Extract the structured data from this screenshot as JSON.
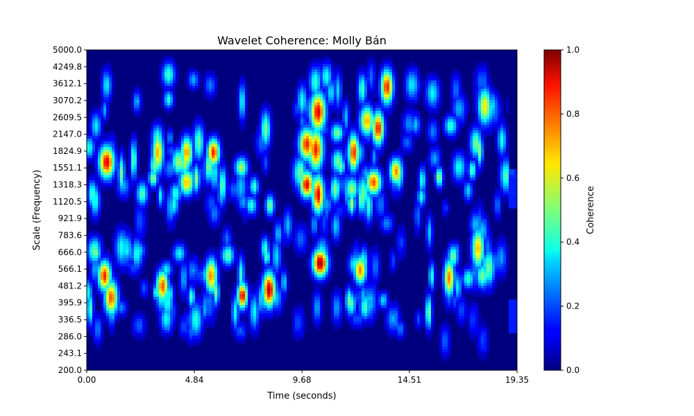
{
  "chart_data": {
    "type": "heatmap",
    "title": "Wavelet Coherence: Molly Bán",
    "xlabel": "Time (seconds)",
    "ylabel": "Scale (Frequency)",
    "xlim": [
      0.0,
      19.35
    ],
    "x_ticks": [
      "0.00",
      "4.84",
      "9.68",
      "14.51",
      "19.35"
    ],
    "y_ticks": [
      "200.0",
      "243.1",
      "286.0",
      "336.5",
      "395.9",
      "481.2",
      "566.1",
      "666.0",
      "783.6",
      "921.9",
      "1120.5",
      "1318.3",
      "1551.1",
      "1824.9",
      "2147.0",
      "2609.5",
      "3070.2",
      "3612.1",
      "4249.8",
      "5000.0"
    ],
    "colorbar": {
      "label": "Coherence",
      "range": [
        0.0,
        1.0
      ],
      "ticks": [
        "0.0",
        "0.2",
        "0.4",
        "0.6",
        "0.8",
        "1.0"
      ],
      "colormap": "jet"
    },
    "hotspots": [
      {
        "t": 0.9,
        "scale": 1640,
        "value": 0.9
      },
      {
        "t": 0.8,
        "scale": 530,
        "value": 0.85
      },
      {
        "t": 1.1,
        "scale": 420,
        "value": 0.8
      },
      {
        "t": 3.2,
        "scale": 1800,
        "value": 0.7
      },
      {
        "t": 3.4,
        "scale": 480,
        "value": 0.8
      },
      {
        "t": 4.5,
        "scale": 1800,
        "value": 0.75
      },
      {
        "t": 4.5,
        "scale": 1350,
        "value": 0.7
      },
      {
        "t": 5.6,
        "scale": 530,
        "value": 0.75
      },
      {
        "t": 5.7,
        "scale": 1800,
        "value": 0.85
      },
      {
        "t": 7.0,
        "scale": 430,
        "value": 0.9
      },
      {
        "t": 8.2,
        "scale": 460,
        "value": 0.95
      },
      {
        "t": 9.9,
        "scale": 1320,
        "value": 0.9
      },
      {
        "t": 9.9,
        "scale": 1950,
        "value": 0.85
      },
      {
        "t": 10.4,
        "scale": 2750,
        "value": 0.9
      },
      {
        "t": 10.3,
        "scale": 1850,
        "value": 0.85
      },
      {
        "t": 10.4,
        "scale": 1200,
        "value": 0.9
      },
      {
        "t": 10.5,
        "scale": 600,
        "value": 1.0
      },
      {
        "t": 12.0,
        "scale": 1800,
        "value": 0.85
      },
      {
        "t": 12.3,
        "scale": 560,
        "value": 0.75
      },
      {
        "t": 12.9,
        "scale": 1350,
        "value": 0.8
      },
      {
        "t": 12.6,
        "scale": 2500,
        "value": 0.7
      },
      {
        "t": 13.1,
        "scale": 2300,
        "value": 0.85
      },
      {
        "t": 13.5,
        "scale": 3500,
        "value": 0.85
      },
      {
        "t": 13.9,
        "scale": 1500,
        "value": 0.75
      },
      {
        "t": 16.3,
        "scale": 520,
        "value": 0.75
      },
      {
        "t": 17.6,
        "scale": 690,
        "value": 0.7
      },
      {
        "t": 17.9,
        "scale": 2900,
        "value": 0.65
      }
    ]
  }
}
